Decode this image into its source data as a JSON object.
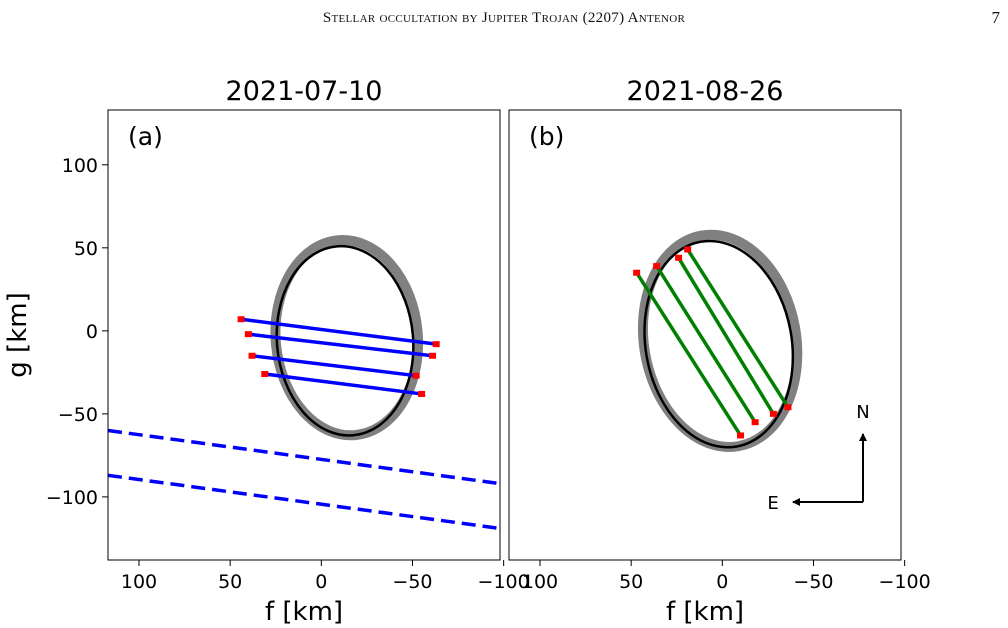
{
  "running_head": {
    "title": "Stellar occultation by Jupiter Trojan (2207) Antenor",
    "page_number": "7"
  },
  "chart_data": [
    {
      "type": "scatter",
      "title": "2021-07-10",
      "panel_label": "(a)",
      "xlabel": "f [km]",
      "ylabel": "g [km]",
      "xlim": [
        117,
        -98
      ],
      "ylim": [
        -138,
        133
      ],
      "xticks": [
        100,
        50,
        0,
        -50,
        -100
      ],
      "xtick_labels": [
        "100",
        "50",
        "0",
        "−50",
        "−100"
      ],
      "yticks": [
        100,
        50,
        0,
        -50,
        -100
      ],
      "ytick_labels": [
        "100",
        "50",
        "0",
        "−50",
        "−100"
      ],
      "grid": false,
      "legend": "none",
      "limb_fit": {
        "center": [
          -13,
          -6
        ],
        "semi_axes": [
          52,
          41
        ],
        "rotation_deg": -95,
        "color": "#000000",
        "uncertainty_color": "#808080"
      },
      "chords": [
        {
          "start": [
            44,
            7
          ],
          "end": [
            -63,
            -8
          ]
        },
        {
          "start": [
            40,
            -2
          ],
          "end": [
            -61,
            -15
          ]
        },
        {
          "start": [
            38,
            -15
          ],
          "end": [
            -52,
            -27
          ]
        },
        {
          "start": [
            31,
            -26
          ],
          "end": [
            -55,
            -38
          ]
        }
      ],
      "negative_chords": [
        {
          "start": [
            117,
            -60
          ],
          "end": [
            -98,
            -92
          ]
        },
        {
          "start": [
            117,
            -87
          ],
          "end": [
            -98,
            -119
          ]
        }
      ],
      "chord_color": "#0000ff",
      "timing_marker_color": "#ff0000"
    },
    {
      "type": "scatter",
      "title": "2021-08-26",
      "panel_label": "(b)",
      "xlabel": "f [km]",
      "ylabel": "",
      "xlim": [
        117,
        -98
      ],
      "ylim": [
        -138,
        133
      ],
      "xticks": [
        100,
        50,
        0,
        -50,
        -100
      ],
      "xtick_labels": [
        "100",
        "50",
        "0",
        "−50",
        "−100"
      ],
      "grid": false,
      "legend": "none",
      "limb_fit": {
        "center": [
          2,
          -8
        ],
        "semi_axes": [
          57,
          44
        ],
        "rotation_deg": -100,
        "color": "#000000",
        "uncertainty_color": "#808080"
      },
      "chords": [
        {
          "start": [
            47,
            35
          ],
          "end": [
            -10,
            -63
          ]
        },
        {
          "start": [
            36,
            39
          ],
          "end": [
            -18,
            -55
          ]
        },
        {
          "start": [
            24,
            44
          ],
          "end": [
            -28,
            -50
          ]
        },
        {
          "start": [
            19,
            49
          ],
          "end": [
            -36,
            -46
          ]
        }
      ],
      "chord_color": "#008000",
      "timing_marker_color": "#ff0000",
      "compass": {
        "north_label": "N",
        "east_label": "E"
      }
    }
  ]
}
